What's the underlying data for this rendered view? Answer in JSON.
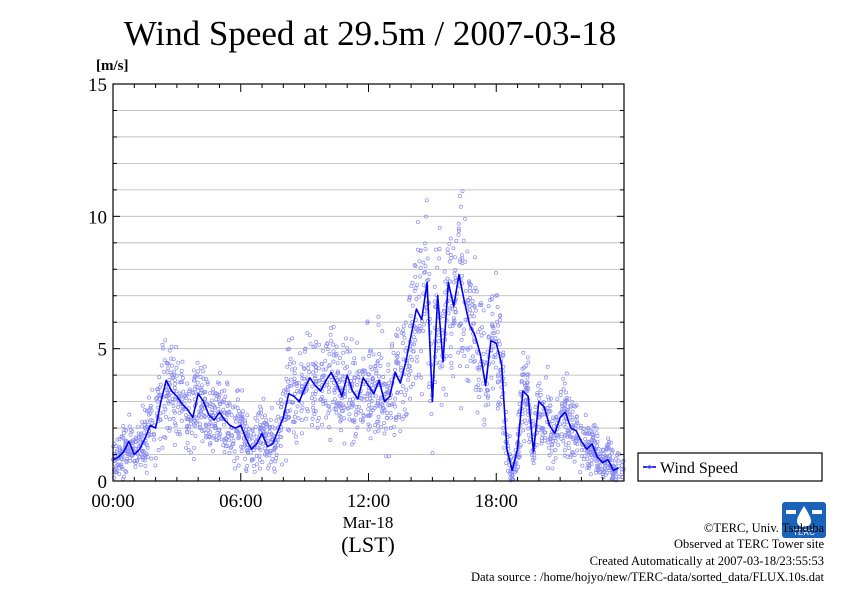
{
  "chart_data": {
    "type": "scatter",
    "title": "Wind Speed at 29.5m / 2007-03-18",
    "ylabel": "[m/s]",
    "xlabel_date": "Mar-18",
    "xlabel": "(LST)",
    "ylim": [
      0,
      15
    ],
    "xlim_hours": [
      0,
      24
    ],
    "yticks": [
      0,
      5,
      10,
      15
    ],
    "xticks": [
      {
        "hour": 0,
        "label": "00:00"
      },
      {
        "hour": 6,
        "label": "06:00"
      },
      {
        "hour": 12,
        "label": "12:00"
      },
      {
        "hour": 18,
        "label": "18:00"
      }
    ],
    "grid": true,
    "legend": {
      "position": "right-bottom",
      "entries": [
        "Wind Speed"
      ]
    },
    "colors": {
      "line": "#0000ee",
      "scatter": "#8a8cf0"
    },
    "series": [
      {
        "name": "Wind Speed",
        "x_hours": [
          0.0,
          0.25,
          0.5,
          0.75,
          1.0,
          1.25,
          1.5,
          1.75,
          2.0,
          2.25,
          2.5,
          2.75,
          3.0,
          3.25,
          3.5,
          3.75,
          4.0,
          4.25,
          4.5,
          4.75,
          5.0,
          5.25,
          5.5,
          5.75,
          6.0,
          6.25,
          6.5,
          6.75,
          7.0,
          7.25,
          7.5,
          7.75,
          8.0,
          8.25,
          8.5,
          8.75,
          9.0,
          9.25,
          9.5,
          9.75,
          10.0,
          10.25,
          10.5,
          10.75,
          11.0,
          11.25,
          11.5,
          11.75,
          12.0,
          12.25,
          12.5,
          12.75,
          13.0,
          13.25,
          13.5,
          13.75,
          14.0,
          14.25,
          14.5,
          14.75,
          15.0,
          15.25,
          15.5,
          15.75,
          16.0,
          16.25,
          16.5,
          16.75,
          17.0,
          17.25,
          17.5,
          17.75,
          18.0,
          18.25,
          18.5,
          18.75,
          19.0,
          19.25,
          19.5,
          19.75,
          20.0,
          20.25,
          20.5,
          20.75,
          21.0,
          21.25,
          21.5,
          21.75,
          22.0,
          22.25,
          22.5,
          22.75,
          23.0,
          23.25,
          23.5,
          23.75
        ],
        "y": [
          0.8,
          0.9,
          1.1,
          1.5,
          1.0,
          1.2,
          1.6,
          2.1,
          2.0,
          3.0,
          3.8,
          3.4,
          3.2,
          2.9,
          2.7,
          2.4,
          3.3,
          3.0,
          2.5,
          2.3,
          2.6,
          2.3,
          2.1,
          2.0,
          2.1,
          1.6,
          1.2,
          1.4,
          1.8,
          1.3,
          1.4,
          1.9,
          2.4,
          3.3,
          3.2,
          3.0,
          3.5,
          3.9,
          3.6,
          3.4,
          3.8,
          4.1,
          3.7,
          3.2,
          4.0,
          3.4,
          3.1,
          3.9,
          3.6,
          3.3,
          3.8,
          3.0,
          3.2,
          4.1,
          3.7,
          4.5,
          5.5,
          6.5,
          6.1,
          7.5,
          3.0,
          7.0,
          4.5,
          7.5,
          6.6,
          7.8,
          6.8,
          5.9,
          5.5,
          4.8,
          3.6,
          5.3,
          5.2,
          4.4,
          1.2,
          0.4,
          1.2,
          3.4,
          3.2,
          1.1,
          3.0,
          2.8,
          2.1,
          1.8,
          2.4,
          2.6,
          2.0,
          1.9,
          1.5,
          1.2,
          1.4,
          0.9,
          0.7,
          0.8,
          0.4,
          0.5
        ]
      }
    ]
  },
  "legend_label": "Wind Speed",
  "credits": {
    "line1": "©TERC, Univ. Tsukuba",
    "line2": "Observed at TERC Tower site",
    "line3": "Created Automatically at 2007-03-18/23:55:53",
    "line4": "Data source : /home/hojyo/new/TERC-data/sorted_data/FLUX.10s.dat"
  },
  "logo_text": "TERC"
}
